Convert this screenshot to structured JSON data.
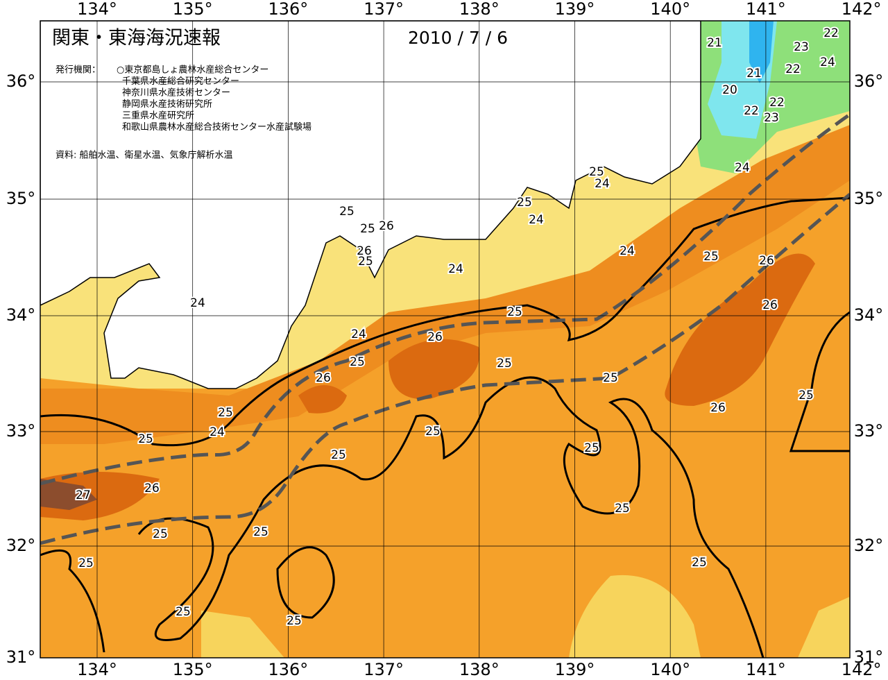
{
  "title": "関東・東海海況速報",
  "date": "2010 / 7 / 6",
  "issuer_label": "発行機関：",
  "issuers": [
    "○東京都島しょ農林水産総合センター",
    "千葉県水産総合研究センター",
    "神奈川県水産技術センター",
    "静岡県水産技術研究所",
    "三重県水産研究所",
    "和歌山県農林水産総合技術センター水産試験場"
  ],
  "source": "資料: 船舶水温、衛星水温、気象庁解析水温",
  "lon_labels": [
    "134°",
    "135°",
    "136°",
    "137°",
    "138°",
    "139°",
    "140°",
    "141°",
    "142°"
  ],
  "lat_labels": [
    "36°",
    "35°",
    "34°",
    "33°",
    "32°",
    "31°"
  ],
  "contour_labels": [
    "21",
    "22",
    "23",
    "21",
    "22",
    "24",
    "20",
    "22",
    "22",
    "23",
    "24",
    "25",
    "24",
    "25",
    "25",
    "24",
    "25",
    "26",
    "26",
    "25",
    "24",
    "24",
    "25",
    "26",
    "24",
    "25",
    "26",
    "24",
    "26",
    "25",
    "25",
    "26",
    "25",
    "25",
    "26",
    "25",
    "24",
    "25",
    "25",
    "25",
    "25",
    "26",
    "27",
    "25",
    "25",
    "25",
    "25",
    "25",
    "25",
    "25"
  ]
}
